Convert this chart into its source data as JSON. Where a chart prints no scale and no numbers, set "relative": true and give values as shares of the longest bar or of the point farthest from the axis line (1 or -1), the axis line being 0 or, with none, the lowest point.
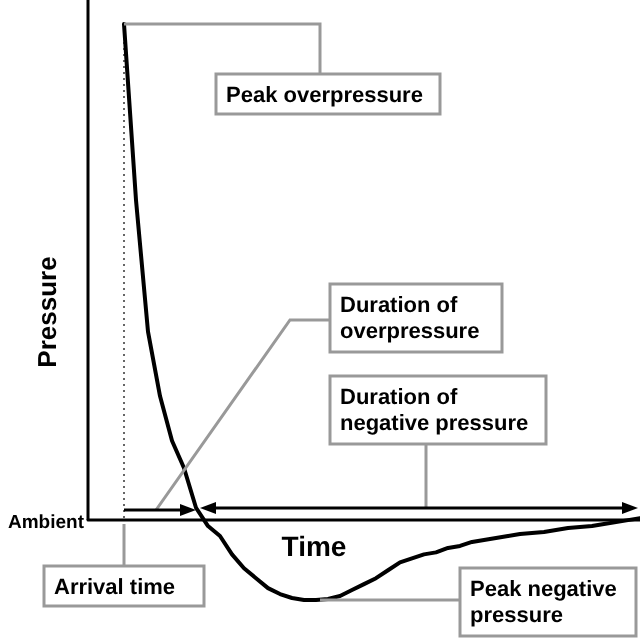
{
  "chart_data": {
    "type": "line",
    "relative": true,
    "xlabel": "Time",
    "ylabel": "Pressure",
    "marker": "none",
    "color": "#000000",
    "categories": [
      null,
      null,
      null,
      null,
      null,
      null,
      null,
      null,
      null,
      null,
      null,
      null,
      null,
      null,
      null,
      null,
      null,
      null,
      null,
      null,
      null,
      null,
      null,
      null,
      null,
      null,
      null,
      null,
      null,
      null,
      null,
      null,
      null,
      null,
      null,
      null,
      null,
      null,
      null,
      null,
      null,
      null,
      null,
      null,
      null,
      null,
      null
    ],
    "values": [
      null,
      null,
      null,
      1,
      0.645,
      0.38,
      0.25,
      0.16,
      0.105,
      0.025,
      -0.012,
      -0.032,
      -0.069,
      -0.097,
      -0.117,
      -0.137,
      -0.149,
      -0.157,
      -0.161,
      -0.161,
      -0.159,
      -0.153,
      -0.141,
      -0.129,
      -0.117,
      -0.101,
      -0.085,
      -0.077,
      -0.069,
      -0.065,
      -0.056,
      -0.052,
      -0.044,
      -0.04,
      -0.036,
      -0.032,
      -0.028,
      -0.026,
      -0.024,
      -0.02,
      -0.016,
      -0.014,
      -0.012,
      -0.008,
      -0.004,
      0,
      0.004
    ],
    "annotations": [
      "Peak overpressure",
      "Duration of overpressure",
      "Duration of negative pressure",
      "Arrival time",
      "Peak negative pressure",
      "Ambient"
    ]
  }
}
